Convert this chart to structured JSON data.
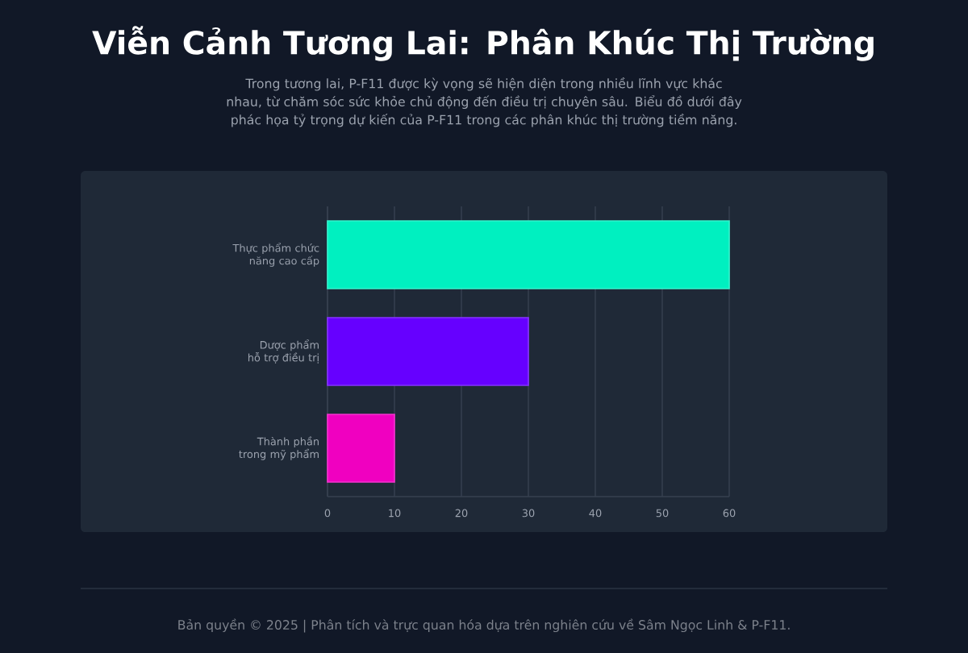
{
  "chart_data": {
    "type": "bar",
    "orientation": "horizontal",
    "title": "Viễn Cảnh Tương Lai: Phân Khúc Thị Trường",
    "subtitle": "Trong tương lai, P-F11 được kỳ vọng sẽ hiện diện trong nhiều lĩnh vực khác nhau, từ chăm sóc sức khỏe chủ động đến điều trị chuyên sâu. Biểu đồ dưới đây phác họa tỷ trọng dự kiến của P-F11 trong các phân khúc thị trường tiềm năng.",
    "categories": [
      "Thực phẩm chức năng cao cấp",
      "Dược phẩm hỗ trợ điều trị",
      "Thành phần trong mỹ phẩm"
    ],
    "values": [
      60,
      30,
      10
    ],
    "colors": [
      "#00f0c0",
      "#6600ff",
      "#f000c0"
    ],
    "xlim": [
      0,
      60
    ],
    "xticks": [
      0,
      10,
      20,
      30,
      40,
      50,
      60
    ],
    "grid": "x",
    "annotations": [
      "Bản quyền © 2025 | Phân tích và trực quan hóa dựa trên nghiên cứu về Sâm Ngọc Linh & P-F11."
    ]
  }
}
